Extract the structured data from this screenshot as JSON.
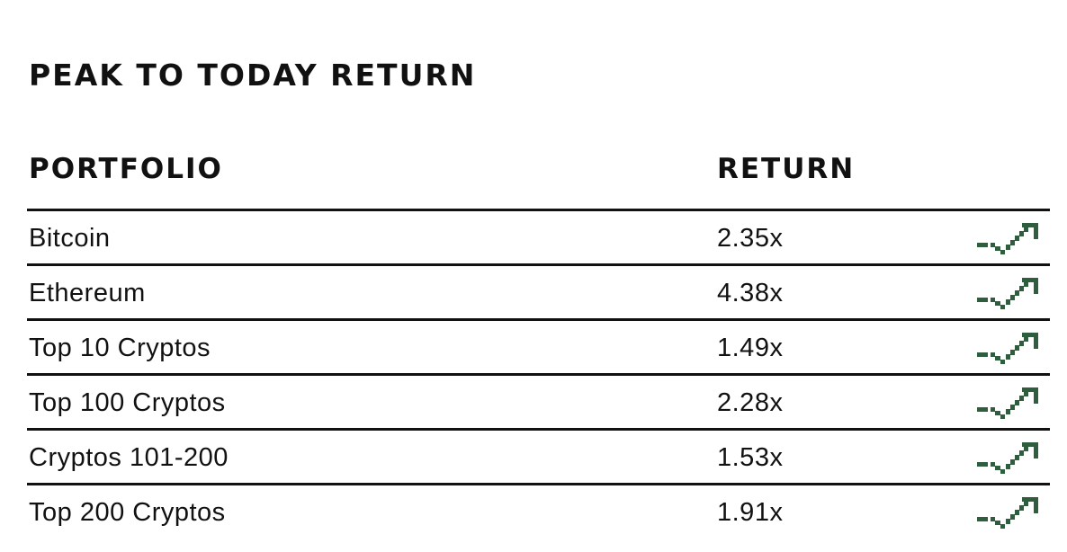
{
  "title": "PEAK TO TODAY RETURN",
  "columns": {
    "portfolio": "PORTFOLIO",
    "return": "RETURN"
  },
  "rows": [
    {
      "portfolio": "Bitcoin",
      "return": "2.35x"
    },
    {
      "portfolio": "Ethereum",
      "return": "4.38x"
    },
    {
      "portfolio": "Top 10 Cryptos",
      "return": "1.49x"
    },
    {
      "portfolio": "Top 100 Cryptos",
      "return": "2.28x"
    },
    {
      "portfolio": "Cryptos 101-200",
      "return": "1.53x"
    },
    {
      "portfolio": "Top 200 Cryptos",
      "return": "1.91x"
    }
  ],
  "icon": {
    "name": "trend-up-icon",
    "color": "#2f5e3f"
  }
}
